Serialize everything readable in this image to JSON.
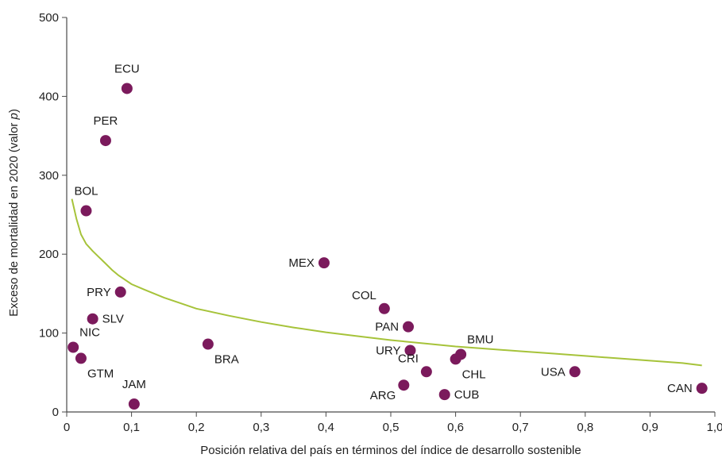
{
  "chart_data": {
    "type": "scatter",
    "xlabel": "Posición relativa del país en términos del índice de desarrollo sostenible",
    "ylabel_prefix": "Exceso de mortalidad en 2020 (valor ",
    "ylabel_italic": "p",
    "ylabel_suffix": ")",
    "xlim": [
      0,
      1.0
    ],
    "ylim": [
      0,
      500
    ],
    "xticks": [
      "0",
      "0,1",
      "0,2",
      "0,3",
      "0,4",
      "0,5",
      "0,6",
      "0,7",
      "0,8",
      "0,9",
      "1,0"
    ],
    "xtick_values": [
      0,
      0.1,
      0.2,
      0.3,
      0.4,
      0.5,
      0.6,
      0.7,
      0.8,
      0.9,
      1.0
    ],
    "yticks": [
      "0",
      "100",
      "200",
      "300",
      "400",
      "500"
    ],
    "ytick_values": [
      0,
      100,
      200,
      300,
      400,
      500
    ],
    "grid": false,
    "colors": {
      "points": "#7b1a5c",
      "trend": "#a6c33a",
      "axis": "#4a4a4a"
    },
    "points": [
      {
        "label": "ECU",
        "x": 0.093,
        "y": 410,
        "label_pos": "above"
      },
      {
        "label": "PER",
        "x": 0.06,
        "y": 344,
        "label_pos": "above"
      },
      {
        "label": "BOL",
        "x": 0.03,
        "y": 255,
        "label_pos": "above"
      },
      {
        "label": "MEX",
        "x": 0.397,
        "y": 189,
        "label_pos": "left"
      },
      {
        "label": "PRY",
        "x": 0.083,
        "y": 152,
        "label_pos": "left"
      },
      {
        "label": "COL",
        "x": 0.49,
        "y": 131,
        "label_pos": "left-up"
      },
      {
        "label": "SLV",
        "x": 0.04,
        "y": 118,
        "label_pos": "right"
      },
      {
        "label": "PAN",
        "x": 0.527,
        "y": 108,
        "label_pos": "left"
      },
      {
        "label": "NIC",
        "x": 0.01,
        "y": 82,
        "label_pos": "right-up"
      },
      {
        "label": "BRA",
        "x": 0.218,
        "y": 86,
        "label_pos": "right-down"
      },
      {
        "label": "URY",
        "x": 0.53,
        "y": 78,
        "label_pos": "left"
      },
      {
        "label": "BMU",
        "x": 0.608,
        "y": 73,
        "label_pos": "right-up"
      },
      {
        "label": "GTM",
        "x": 0.022,
        "y": 68,
        "label_pos": "right-down"
      },
      {
        "label": "CHL",
        "x": 0.6,
        "y": 67,
        "label_pos": "right-down"
      },
      {
        "label": "CRI",
        "x": 0.555,
        "y": 51,
        "label_pos": "left-up"
      },
      {
        "label": "USA",
        "x": 0.784,
        "y": 51,
        "label_pos": "left"
      },
      {
        "label": "ARG",
        "x": 0.52,
        "y": 34,
        "label_pos": "left-down"
      },
      {
        "label": "CAN",
        "x": 0.98,
        "y": 30,
        "label_pos": "left"
      },
      {
        "label": "CUB",
        "x": 0.583,
        "y": 22,
        "label_pos": "right"
      },
      {
        "label": "JAM",
        "x": 0.104,
        "y": 10,
        "label_pos": "above"
      }
    ],
    "trend": {
      "x": [
        0.008,
        0.015,
        0.022,
        0.03,
        0.04,
        0.05,
        0.06,
        0.07,
        0.08,
        0.1,
        0.12,
        0.15,
        0.2,
        0.25,
        0.3,
        0.35,
        0.4,
        0.45,
        0.5,
        0.55,
        0.6,
        0.65,
        0.7,
        0.75,
        0.8,
        0.85,
        0.9,
        0.95,
        0.98
      ],
      "y": [
        270,
        245,
        225,
        213,
        204,
        196,
        188,
        180,
        173,
        162,
        155,
        145,
        131,
        122,
        114,
        107,
        101,
        96,
        91,
        87,
        83,
        80,
        77,
        74,
        71,
        68,
        65,
        62,
        59
      ]
    }
  }
}
